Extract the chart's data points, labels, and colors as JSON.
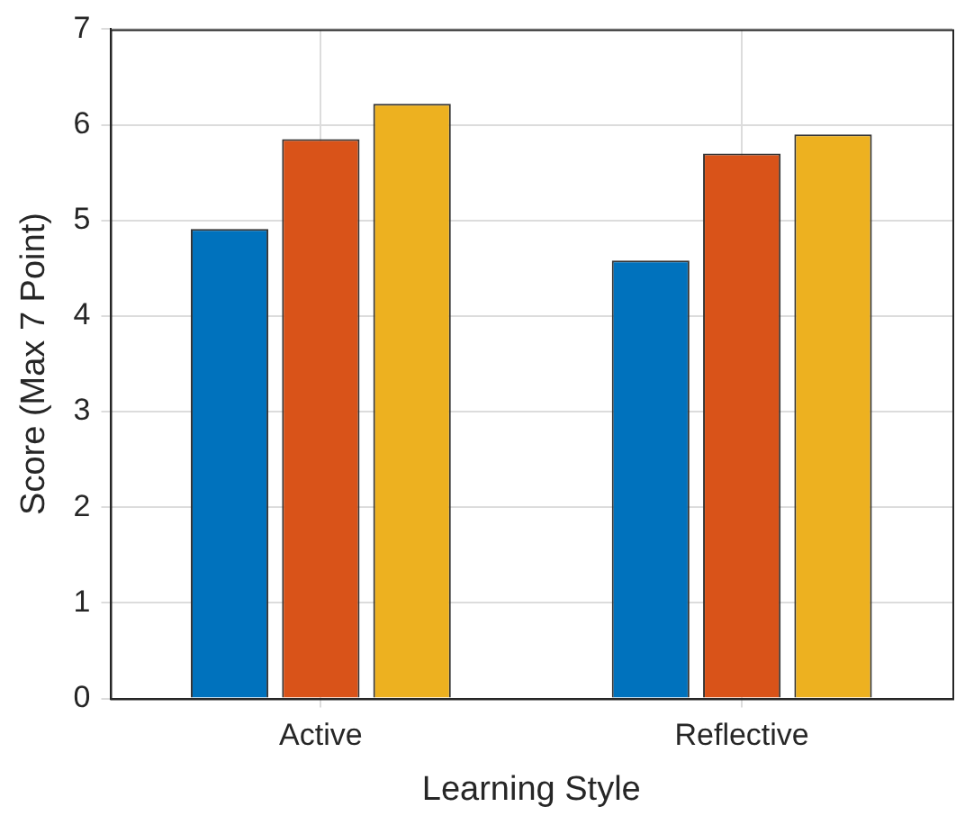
{
  "chart_data": {
    "type": "bar",
    "xlabel": "Learning Style",
    "ylabel": "Score (Max 7 Point)",
    "categories": [
      "Active",
      "Reflective"
    ],
    "series": [
      {
        "color": "#0072bd",
        "values": [
          4.91,
          4.58
        ]
      },
      {
        "color": "#d95319",
        "values": [
          5.85,
          5.7
        ]
      },
      {
        "color": "#edb120",
        "values": [
          6.22,
          5.9
        ]
      }
    ],
    "ylim": [
      0,
      7
    ],
    "yticks": [
      0,
      1,
      2,
      3,
      4,
      5,
      6,
      7
    ],
    "grid": true,
    "legend": false
  }
}
